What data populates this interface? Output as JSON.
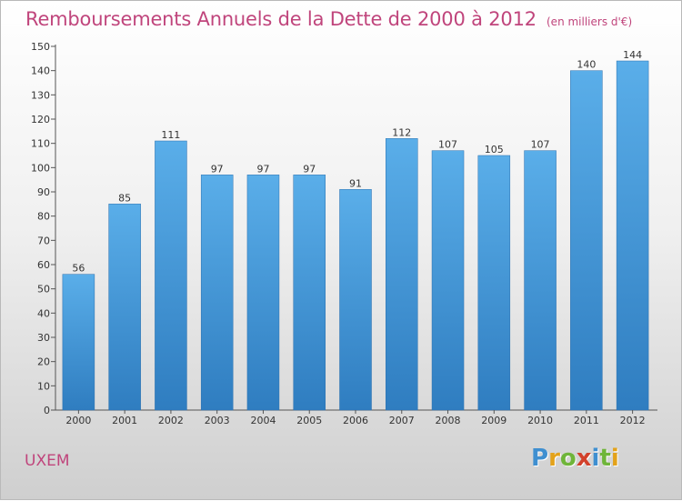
{
  "header": {
    "title": "Remboursements Annuels de la Dette de 2000 à 2012",
    "subtitle": "(en milliers d'€)"
  },
  "footer": {
    "location": "UXEM",
    "logo": {
      "letters": [
        "P",
        "r",
        "o",
        "x",
        "i",
        "t",
        "i"
      ],
      "colors": [
        "#3f8fd0",
        "#e3a21a",
        "#6fb53a",
        "#d2412b",
        "#3f8fd0",
        "#6fb53a",
        "#e3a21a"
      ]
    }
  },
  "chart_data": {
    "type": "bar",
    "categories": [
      "2000",
      "2001",
      "2002",
      "2003",
      "2004",
      "2005",
      "2006",
      "2007",
      "2008",
      "2009",
      "2010",
      "2011",
      "2012"
    ],
    "values": [
      56,
      85,
      111,
      97,
      97,
      97,
      91,
      112,
      107,
      105,
      107,
      140,
      144
    ],
    "data_labels": [
      "56",
      "85",
      "111",
      "97",
      "97",
      "97",
      "91",
      "112",
      "107",
      "105",
      "107",
      "140",
      "144"
    ],
    "ylim": [
      0,
      150
    ],
    "yticks": [
      0,
      10,
      20,
      30,
      40,
      50,
      60,
      70,
      80,
      90,
      100,
      110,
      120,
      130,
      140,
      150
    ],
    "grid": false,
    "bar_color": "#3f95d8",
    "bar_color_light": "#5aaee9",
    "bar_color_dark": "#2f7dc0"
  }
}
